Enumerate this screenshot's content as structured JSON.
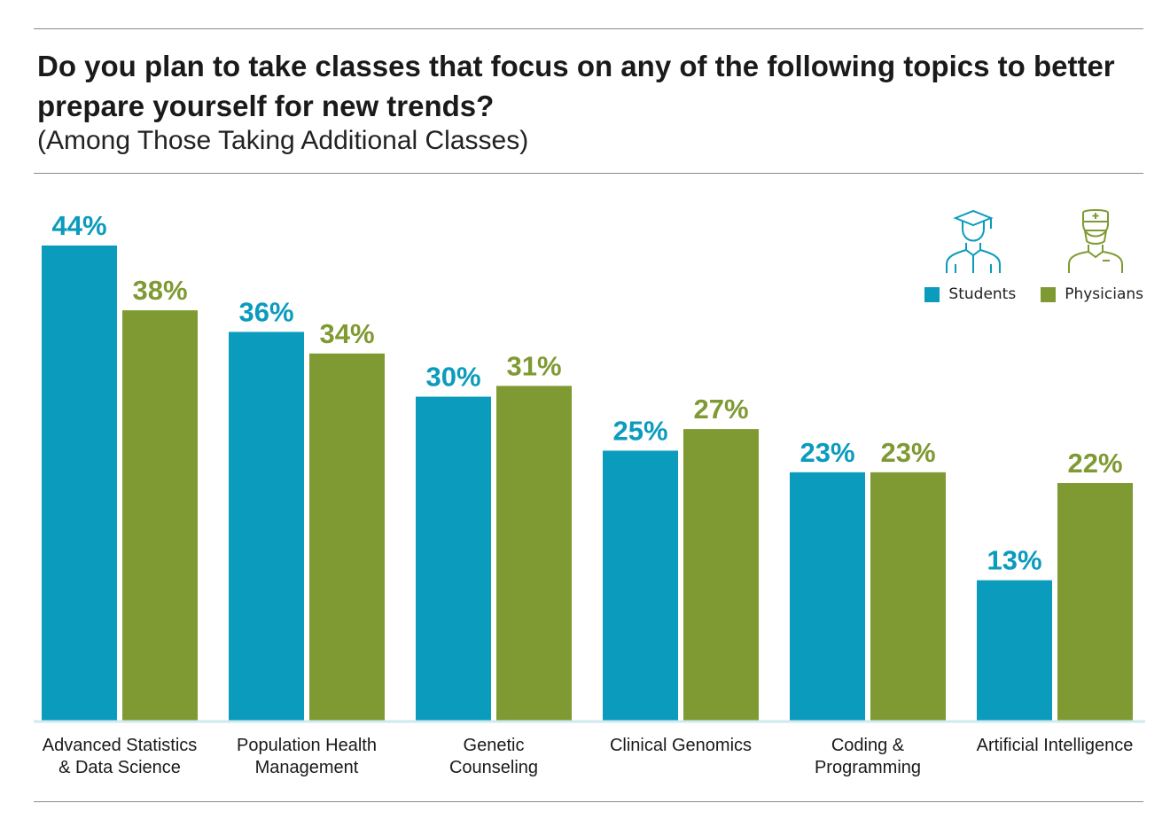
{
  "title": "Do you plan to take classes that focus on any of the following topics to better prepare yourself for new trends?",
  "subtitle": "(Among Those Taking Additional Classes)",
  "legend": {
    "students": "Students",
    "physicians": "Physicians"
  },
  "colors": {
    "students": "#0a9bbd",
    "physicians": "#7f9a33"
  },
  "icons": {
    "students": "graduate-icon",
    "physicians": "doctor-icon"
  },
  "chart_data": {
    "type": "bar",
    "categories": [
      [
        "Advanced Statistics",
        "& Data Science"
      ],
      [
        "Population Health",
        "Management"
      ],
      [
        "Genetic",
        "Counseling"
      ],
      [
        "Clinical Genomics"
      ],
      [
        "Coding &",
        "Programming"
      ],
      [
        "Artificial Intelligence"
      ]
    ],
    "series": [
      {
        "name": "Students",
        "values": [
          44,
          36,
          30,
          25,
          23,
          13
        ],
        "labels": [
          "44%",
          "36%",
          "30%",
          "25%",
          "23%",
          "13%"
        ]
      },
      {
        "name": "Physicians",
        "values": [
          38,
          34,
          31,
          27,
          23,
          22
        ],
        "labels": [
          "38%",
          "34%",
          "31%",
          "27%",
          "23%",
          "22%"
        ]
      }
    ],
    "title": "Do you plan to take classes that focus on any of the following topics to better prepare yourself for new trends?",
    "subtitle": "(Among Those Taking Additional Classes)",
    "ylim": [
      0,
      44
    ],
    "grid": false,
    "legend": "top-right"
  }
}
